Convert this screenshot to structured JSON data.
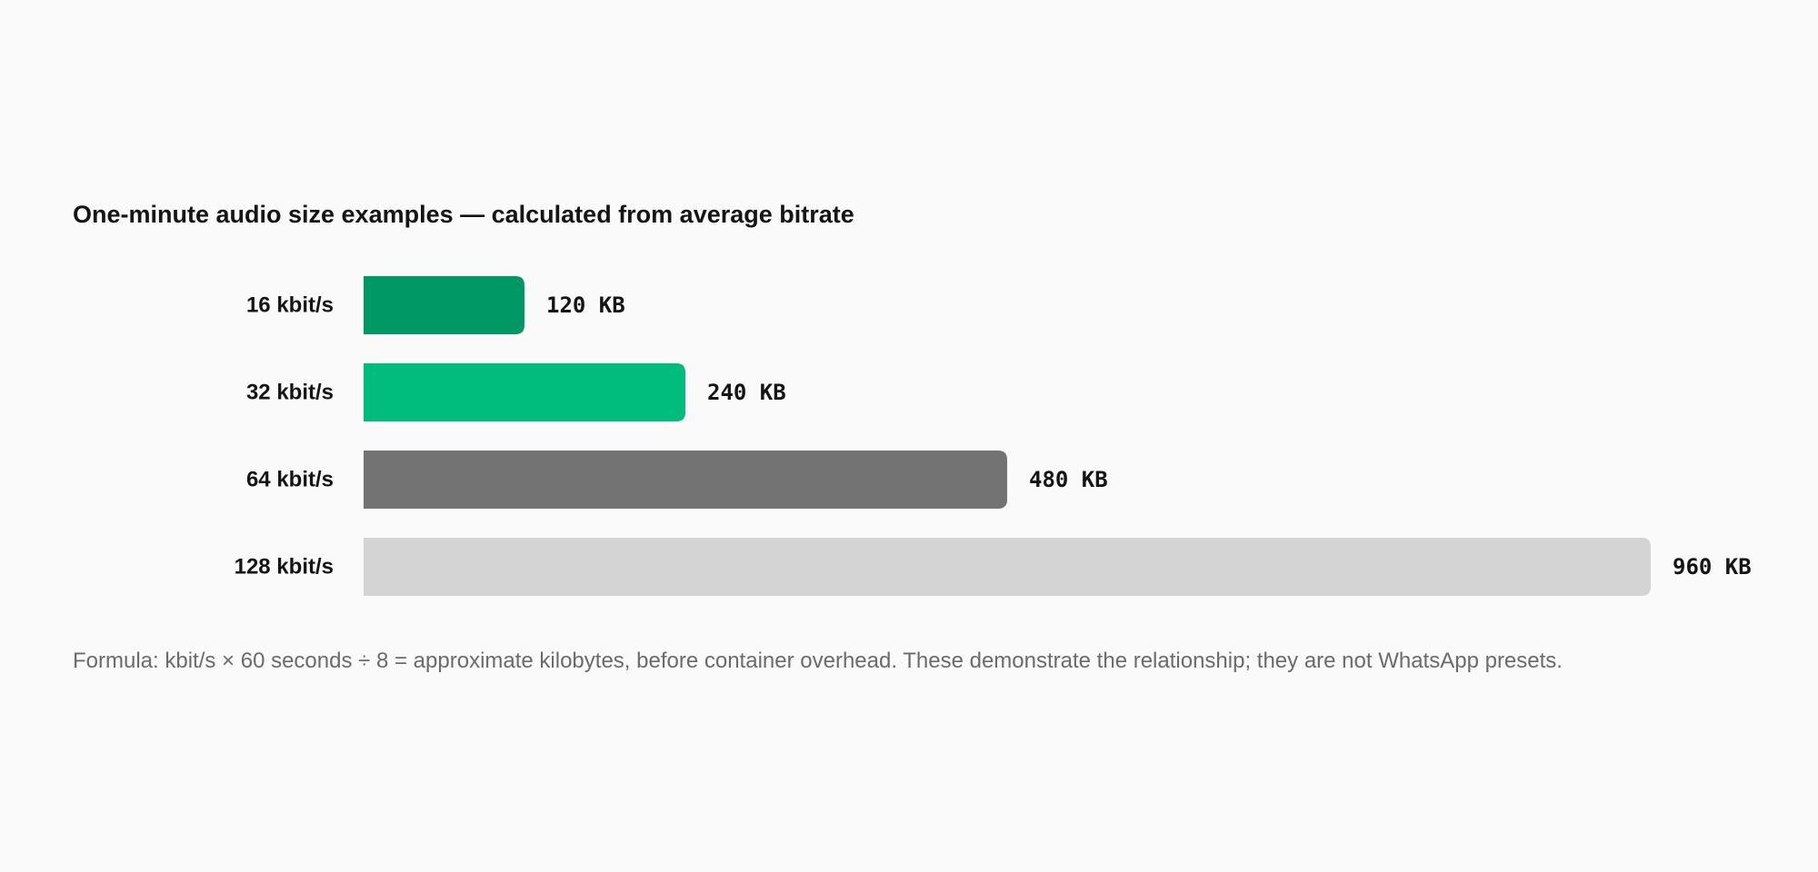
{
  "chart_data": {
    "type": "bar",
    "orientation": "horizontal",
    "title": "One-minute audio size examples — calculated from average bitrate",
    "categories": [
      "16 kbit/s",
      "32 kbit/s",
      "64 kbit/s",
      "128 kbit/s"
    ],
    "values": [
      120,
      240,
      480,
      960
    ],
    "value_labels": [
      "120 KB",
      "240 KB",
      "480 KB",
      "960 KB"
    ],
    "unit": "KB",
    "colors": [
      "#009966",
      "#00bc7d",
      "#737373",
      "#d4d4d4"
    ],
    "xlim": [
      0,
      960
    ],
    "grid": false,
    "legend": "none"
  },
  "footnote": "Formula: kbit/s × 60 seconds ÷ 8 = approximate kilobytes, before container overhead. These demonstrate the relationship; they are not WhatsApp presets."
}
